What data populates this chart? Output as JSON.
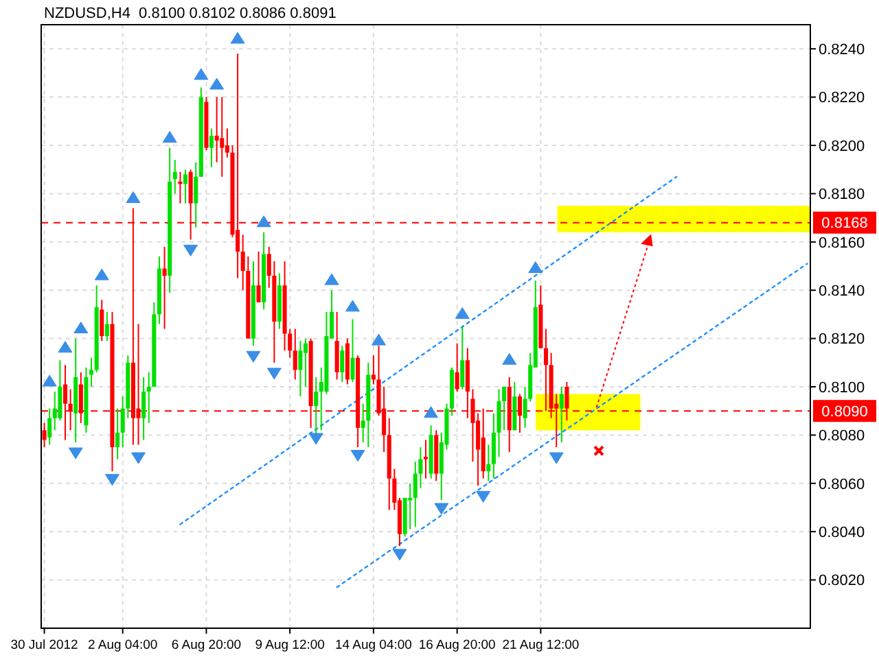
{
  "chart_data": {
    "type": "candlestick",
    "title": "NZDUSD,H4  0.8100 0.8102 0.8086 0.8091",
    "categories": [
      "30 Jul 2012",
      null,
      null,
      null,
      null,
      null,
      null,
      null,
      null,
      null,
      null,
      null,
      null,
      null,
      null,
      "2 Aug 04:00",
      null,
      null,
      null,
      null,
      null,
      null,
      null,
      null,
      null,
      null,
      null,
      null,
      null,
      null,
      null,
      "6 Aug 20:00",
      null,
      null,
      null,
      null,
      null,
      null,
      null,
      null,
      null,
      null,
      null,
      null,
      null,
      null,
      null,
      "9 Aug 12:00",
      null,
      null,
      null,
      null,
      null,
      null,
      null,
      null,
      null,
      null,
      null,
      null,
      null,
      null,
      null,
      "14 Aug 04:00",
      null,
      null,
      null,
      null,
      null,
      null,
      null,
      null,
      null,
      null,
      null,
      null,
      null,
      null,
      null,
      "16 Aug 20:00",
      null,
      null,
      null,
      null,
      null,
      null,
      null,
      null,
      null,
      null,
      null,
      null,
      null,
      null,
      null,
      "21 Aug 12:00",
      null,
      null,
      null,
      null,
      null,
      null,
      null,
      null,
      null,
      null,
      null,
      null,
      null,
      null,
      null,
      null,
      null,
      null,
      null,
      null,
      null,
      null,
      null,
      null,
      null,
      null,
      null,
      null,
      null,
      null,
      null,
      null,
      null,
      null,
      null,
      null,
      null,
      null,
      null,
      null,
      null,
      null,
      null,
      null,
      null,
      null,
      null,
      null,
      null,
      null,
      null
    ],
    "ohlc": [
      [
        0.8082,
        0.8085,
        0.8075,
        0.8078
      ],
      [
        0.8079,
        0.8091,
        0.8076,
        0.8087
      ],
      [
        0.8087,
        0.8098,
        0.8082,
        0.8091
      ],
      [
        0.8087,
        0.8111,
        0.8086,
        0.81
      ],
      [
        0.8101,
        0.8109,
        0.8078,
        0.8093
      ],
      [
        0.8093,
        0.8099,
        0.8082,
        0.809
      ],
      [
        0.8089,
        0.812,
        0.8077,
        0.8104
      ],
      [
        0.8101,
        0.8106,
        0.8085,
        0.8089
      ],
      [
        0.8084,
        0.8108,
        0.8081,
        0.8104
      ],
      [
        0.8105,
        0.8112,
        0.81,
        0.8107
      ],
      [
        0.8107,
        0.8142,
        0.8106,
        0.8133
      ],
      [
        0.8132,
        0.8136,
        0.8119,
        0.8121
      ],
      [
        0.8121,
        0.8131,
        0.8119,
        0.8126
      ],
      [
        0.8126,
        0.8131,
        0.8065,
        0.8075
      ],
      [
        0.8075,
        0.8091,
        0.807,
        0.8081
      ],
      [
        0.8081,
        0.8096,
        0.8075,
        0.8091
      ],
      [
        0.8091,
        0.8113,
        0.8087,
        0.811
      ],
      [
        0.811,
        0.8174,
        0.8076,
        0.8087
      ],
      [
        0.8091,
        0.8126,
        0.8076,
        0.8087
      ],
      [
        0.8087,
        0.8104,
        0.8078,
        0.8098
      ],
      [
        0.8098,
        0.8106,
        0.8085,
        0.81
      ],
      [
        0.81,
        0.8135,
        0.81,
        0.813
      ],
      [
        0.813,
        0.8154,
        0.8126,
        0.8149
      ],
      [
        0.8149,
        0.8158,
        0.8124,
        0.8146
      ],
      [
        0.8146,
        0.8199,
        0.8139,
        0.8185
      ],
      [
        0.8186,
        0.8194,
        0.818,
        0.8189
      ],
      [
        0.8185,
        0.8189,
        0.8176,
        0.8184
      ],
      [
        0.8184,
        0.819,
        0.8176,
        0.8188
      ],
      [
        0.8189,
        0.819,
        0.8161,
        0.8176
      ],
      [
        0.8176,
        0.8193,
        0.8166,
        0.8187
      ],
      [
        0.8187,
        0.8224,
        0.8187,
        0.822
      ],
      [
        0.8218,
        0.822,
        0.8198,
        0.8199
      ],
      [
        0.8199,
        0.8207,
        0.8191,
        0.8204
      ],
      [
        0.8204,
        0.822,
        0.8193,
        0.8202
      ],
      [
        0.8203,
        0.822,
        0.8187,
        0.8199
      ],
      [
        0.82,
        0.8207,
        0.8195,
        0.8197
      ],
      [
        0.8197,
        0.82,
        0.8162,
        0.8163
      ],
      [
        0.8165,
        0.8238,
        0.8145,
        0.8156
      ],
      [
        0.8156,
        0.8163,
        0.814,
        0.8148
      ],
      [
        0.8148,
        0.8154,
        0.812,
        0.812
      ],
      [
        0.812,
        0.8152,
        0.8117,
        0.8142
      ],
      [
        0.8142,
        0.8156,
        0.8135,
        0.8135
      ],
      [
        0.8135,
        0.8164,
        0.8132,
        0.8155
      ],
      [
        0.8155,
        0.8158,
        0.8141,
        0.8146
      ],
      [
        0.8146,
        0.8152,
        0.811,
        0.8127
      ],
      [
        0.8127,
        0.8147,
        0.8124,
        0.8142
      ],
      [
        0.8142,
        0.8152,
        0.8115,
        0.8122
      ],
      [
        0.8122,
        0.8124,
        0.8112,
        0.8115
      ],
      [
        0.8115,
        0.8124,
        0.8103,
        0.8107
      ],
      [
        0.8107,
        0.8119,
        0.8096,
        0.8115
      ],
      [
        0.8114,
        0.812,
        0.81,
        0.8118
      ],
      [
        0.8119,
        0.812,
        0.8083,
        0.8092
      ],
      [
        0.8092,
        0.8104,
        0.808,
        0.8098
      ],
      [
        0.8098,
        0.8108,
        0.8082,
        0.8102
      ],
      [
        0.8098,
        0.8131,
        0.8097,
        0.8121
      ],
      [
        0.812,
        0.814,
        0.812,
        0.8131
      ],
      [
        0.8119,
        0.8131,
        0.8103,
        0.8106
      ],
      [
        0.8106,
        0.8117,
        0.8102,
        0.8115
      ],
      [
        0.8118,
        0.812,
        0.8101,
        0.8103
      ],
      [
        0.8103,
        0.8128,
        0.8102,
        0.8112
      ],
      [
        0.8112,
        0.8113,
        0.8075,
        0.8083
      ],
      [
        0.8083,
        0.8093,
        0.8077,
        0.8086
      ],
      [
        0.8086,
        0.811,
        0.8075,
        0.8105
      ],
      [
        0.8105,
        0.8113,
        0.8101,
        0.8103
      ],
      [
        0.8103,
        0.8117,
        0.8088,
        0.8089
      ],
      [
        0.8091,
        0.81,
        0.8073,
        0.808
      ],
      [
        0.808,
        0.8087,
        0.8049,
        0.8062
      ],
      [
        0.8062,
        0.8066,
        0.8049,
        0.8052
      ],
      [
        0.8053,
        0.8054,
        0.8034,
        0.8039
      ],
      [
        0.8039,
        0.8054,
        0.8038,
        0.8054
      ],
      [
        0.8053,
        0.806,
        0.8041,
        0.8054
      ],
      [
        0.8054,
        0.8069,
        0.8042,
        0.8064
      ],
      [
        0.8064,
        0.8075,
        0.8058,
        0.807
      ],
      [
        0.8071,
        0.8078,
        0.8062,
        0.807
      ],
      [
        0.8064,
        0.8084,
        0.8062,
        0.808
      ],
      [
        0.808,
        0.8082,
        0.8061,
        0.8064
      ],
      [
        0.8064,
        0.8081,
        0.8053,
        0.8077
      ],
      [
        0.8076,
        0.8093,
        0.8074,
        0.8091
      ],
      [
        0.8091,
        0.8108,
        0.8088,
        0.8107
      ],
      [
        0.8106,
        0.8118,
        0.8098,
        0.8099
      ],
      [
        0.81,
        0.8125,
        0.8099,
        0.8111
      ],
      [
        0.8111,
        0.8116,
        0.8087,
        0.8098
      ],
      [
        0.8095,
        0.8099,
        0.8069,
        0.8085
      ],
      [
        0.8086,
        0.8089,
        0.8059,
        0.8074
      ],
      [
        0.8079,
        0.8091,
        0.8062,
        0.8065
      ],
      [
        0.8065,
        0.8076,
        0.8061,
        0.8068
      ],
      [
        0.8068,
        0.8089,
        0.8062,
        0.8081
      ],
      [
        0.8081,
        0.8099,
        0.8071,
        0.8094
      ],
      [
        0.8094,
        0.81,
        0.8082,
        0.81
      ],
      [
        0.81,
        0.8104,
        0.8073,
        0.8082
      ],
      [
        0.8082,
        0.8102,
        0.8082,
        0.8096
      ],
      [
        0.8096,
        0.8097,
        0.8081,
        0.8088
      ],
      [
        0.8087,
        0.81,
        0.8083,
        0.8095
      ],
      [
        0.8095,
        0.8114,
        0.8094,
        0.8109
      ],
      [
        0.8108,
        0.8144,
        0.8108,
        0.8133
      ],
      [
        0.8134,
        0.8142,
        0.8116,
        0.8116
      ],
      [
        0.8116,
        0.8124,
        0.809,
        0.8109
      ],
      [
        0.8109,
        0.8114,
        0.8087,
        0.8091
      ],
      [
        0.8093,
        0.8097,
        0.8075,
        0.8091
      ],
      [
        0.8091,
        0.81,
        0.8077,
        0.8097
      ],
      [
        0.81,
        0.8102,
        0.8086,
        0.8091
      ],
      null,
      null,
      null,
      null,
      null,
      null,
      null,
      null,
      null,
      null,
      null,
      null,
      null,
      null,
      null,
      null,
      null,
      null,
      null,
      null,
      null,
      null,
      null,
      null,
      null,
      null,
      null,
      null,
      null,
      null,
      null,
      null,
      null,
      null,
      null,
      null,
      null,
      null,
      null,
      null,
      null,
      null,
      null,
      null,
      null,
      null
    ],
    "colors": [
      "#ff0000",
      "#00e000",
      "#00e000",
      "#00e000",
      "#ff0000",
      "#ff0000",
      "#00e000",
      "#ff0000",
      "#00e000",
      "#00e000",
      "#00e000",
      "#ff0000",
      "#00e000",
      "#ff0000",
      "#00e000",
      "#00e000",
      "#00e000",
      "#ff0000",
      "#ff0000",
      "#00e000",
      "#00e000",
      "#00e000",
      "#00e000",
      "#ff0000",
      "#00e000",
      "#00e000",
      "#ff0000",
      "#00e000",
      "#ff0000",
      "#00e000",
      "#00e000",
      "#ff0000",
      "#00e000",
      "#ff0000",
      "#ff0000",
      "#ff0000",
      "#ff0000",
      "#ff0000",
      "#ff0000",
      "#ff0000",
      "#00e000",
      "#ff0000",
      "#00e000",
      "#ff0000",
      "#ff0000",
      "#00e000",
      "#ff0000",
      "#ff0000",
      "#ff0000",
      "#00e000",
      "#00e000",
      "#ff0000",
      "#00e000",
      "#00e000",
      "#00e000",
      "#00e000",
      "#ff0000",
      "#00e000",
      "#ff0000",
      "#00e000",
      "#ff0000",
      "#00e000",
      "#00e000",
      "#ff0000",
      "#ff0000",
      "#ff0000",
      "#ff0000",
      "#ff0000",
      "#ff0000",
      "#00e000",
      "#00e000",
      "#00e000",
      "#00e000",
      "#ff0000",
      "#00e000",
      "#ff0000",
      "#00e000",
      "#00e000",
      "#00e000",
      "#ff0000",
      "#00e000",
      "#ff0000",
      "#ff0000",
      "#ff0000",
      "#ff0000",
      "#00e000",
      "#00e000",
      "#00e000",
      "#00e000",
      "#ff0000",
      "#00e000",
      "#ff0000",
      "#00e000",
      "#00e000",
      "#00e000",
      "#ff0000",
      "#ff0000",
      "#ff0000",
      "#ff0000",
      "#00e000",
      "#ff0000",
      null,
      null,
      null,
      null,
      null,
      null,
      null,
      null,
      null,
      null,
      null,
      null,
      null,
      null,
      null,
      null,
      null,
      null,
      null,
      null,
      null,
      null,
      null,
      null,
      null,
      null,
      null,
      null,
      null,
      null,
      null,
      null,
      null,
      null,
      null,
      null,
      null,
      null,
      null,
      null,
      null,
      null,
      null,
      null,
      null,
      null
    ],
    "series": [
      {
        "type": "line",
        "color": "#1e90ff",
        "values": [
          null,
          null,
          null,
          null,
          null,
          null,
          null,
          null,
          null,
          null,
          null,
          null,
          null,
          null,
          null,
          null,
          null,
          null,
          null,
          null,
          null,
          null,
          null,
          null,
          null,
          null,
          0.8043,
          null,
          null,
          null,
          null,
          null,
          null,
          null,
          null,
          null,
          null,
          null,
          null,
          null,
          null,
          null,
          null,
          null,
          null,
          null,
          null,
          null,
          null,
          null,
          null,
          null,
          null,
          null,
          null,
          null,
          null,
          null,
          null,
          null,
          null,
          null,
          null,
          null,
          null,
          null,
          null,
          null,
          null,
          null,
          null,
          null,
          null,
          null,
          null,
          null,
          null,
          null,
          null,
          null,
          null,
          null,
          null,
          null,
          null,
          null,
          null,
          null,
          null,
          null,
          null,
          null,
          null,
          null,
          null,
          null,
          null,
          null,
          null,
          null,
          null,
          null,
          null,
          null,
          null,
          null,
          null,
          null,
          null,
          null,
          null,
          null,
          null,
          null,
          null,
          null,
          null,
          null,
          null,
          null,
          null,
          0.8187,
          null,
          null,
          null,
          null,
          null,
          null,
          null,
          null,
          null,
          null,
          null,
          null,
          null,
          null,
          null,
          null,
          null,
          null,
          null,
          null,
          null,
          null,
          null,
          null,
          null
        ]
      },
      {
        "type": "line",
        "color": "#1e90ff",
        "values": [
          null,
          null,
          null,
          null,
          null,
          null,
          null,
          null,
          null,
          null,
          null,
          null,
          null,
          null,
          null,
          null,
          null,
          null,
          null,
          null,
          null,
          null,
          null,
          null,
          null,
          null,
          null,
          null,
          null,
          null,
          null,
          null,
          null,
          null,
          null,
          null,
          null,
          null,
          null,
          null,
          null,
          null,
          null,
          null,
          null,
          null,
          null,
          null,
          null,
          null,
          null,
          null,
          null,
          null,
          null,
          null,
          0.8017,
          null,
          null,
          null,
          null,
          null,
          null,
          null,
          null,
          null,
          null,
          null,
          null,
          null,
          null,
          null,
          null,
          null,
          null,
          null,
          null,
          null,
          null,
          null,
          null,
          null,
          null,
          null,
          null,
          null,
          null,
          null,
          null,
          null,
          null,
          null,
          null,
          null,
          null,
          null,
          null,
          null,
          null,
          null,
          null,
          null,
          null,
          null,
          null,
          null,
          null,
          null,
          null,
          null,
          null,
          null,
          null,
          null,
          null,
          null,
          null,
          null,
          null,
          null,
          null,
          null,
          null,
          null,
          null,
          null,
          null,
          null,
          null,
          null,
          null,
          null,
          null,
          null,
          null,
          null,
          null,
          null,
          null,
          null,
          null,
          null,
          null,
          null,
          null,
          null,
          0.8151
        ]
      },
      {
        "type": "scatter",
        "color": "#3a8ee6",
        "marker": "triangle",
        "values": [
          null,
          0.8102,
          null,
          null,
          0.8116,
          null,
          null,
          0.8124,
          null,
          null,
          null,
          0.8146,
          null,
          null,
          null,
          null,
          null,
          0.8178,
          null,
          null,
          null,
          null,
          null,
          null,
          0.8203,
          null,
          null,
          null,
          null,
          null,
          0.8229,
          null,
          null,
          0.8225,
          null,
          null,
          null,
          0.8244,
          null,
          null,
          null,
          null,
          0.8168,
          null,
          null,
          null,
          null,
          null,
          null,
          null,
          null,
          null,
          null,
          null,
          null,
          0.8144,
          null,
          null,
          null,
          0.8133,
          null,
          null,
          null,
          null,
          0.8119,
          null,
          null,
          null,
          null,
          null,
          null,
          null,
          null,
          null,
          0.8089,
          null,
          null,
          null,
          null,
          null,
          0.813,
          null,
          null,
          null,
          null,
          null,
          null,
          null,
          null,
          0.8111,
          null,
          null,
          null,
          null,
          0.8149,
          null,
          null,
          null,
          null,
          null,
          null,
          null,
          null,
          null,
          null,
          null,
          null,
          null,
          null,
          null,
          null,
          null,
          null,
          null,
          null,
          null,
          null,
          null,
          null,
          null,
          null,
          null,
          null,
          null,
          null,
          null,
          null,
          null,
          null,
          null,
          null,
          null,
          null,
          null,
          null,
          null,
          null,
          null,
          null,
          null,
          null,
          null,
          null,
          null,
          null,
          null,
          null
        ]
      },
      {
        "type": "scatter",
        "color": "#3a8ee6",
        "marker": "triangle",
        "values": [
          null,
          null,
          null,
          null,
          null,
          null,
          0.8073,
          null,
          null,
          null,
          null,
          null,
          null,
          0.8062,
          null,
          null,
          null,
          null,
          0.8071,
          null,
          null,
          null,
          null,
          null,
          null,
          null,
          null,
          null,
          0.8157,
          null,
          null,
          null,
          null,
          null,
          null,
          null,
          null,
          null,
          null,
          null,
          0.8113,
          null,
          null,
          null,
          0.8106,
          null,
          null,
          null,
          null,
          null,
          null,
          null,
          0.8079,
          null,
          null,
          null,
          null,
          null,
          null,
          null,
          0.8072,
          null,
          null,
          null,
          null,
          null,
          null,
          null,
          0.8031,
          null,
          null,
          null,
          null,
          null,
          null,
          null,
          0.805,
          null,
          null,
          null,
          null,
          null,
          null,
          null,
          0.8055,
          null,
          null,
          null,
          null,
          null,
          null,
          null,
          null,
          null,
          null,
          null,
          null,
          null,
          0.8071,
          null,
          null,
          null,
          null,
          null,
          null,
          null,
          null,
          null,
          null,
          null,
          null,
          null,
          null,
          null,
          null,
          null,
          null,
          null,
          null,
          null,
          null,
          null,
          null,
          null,
          null,
          null,
          null,
          null,
          null,
          null,
          null,
          null,
          null,
          null,
          null,
          null,
          null,
          null,
          null,
          null,
          null,
          null,
          null,
          null,
          null,
          null,
          null
        ]
      }
    ],
    "line_style": "dotted",
    "ylim": [
      0.8,
      0.825
    ],
    "yticks": [
      {
        "value": 0.802,
        "label": "0.8020"
      },
      {
        "value": 0.804,
        "label": "0.8040"
      },
      {
        "value": 0.806,
        "label": "0.8060"
      },
      {
        "value": 0.808,
        "label": "0.8080"
      },
      {
        "value": 0.81,
        "label": "0.8100"
      },
      {
        "value": 0.812,
        "label": "0.8120"
      },
      {
        "value": 0.814,
        "label": "0.8140"
      },
      {
        "value": 0.816,
        "label": "0.8160"
      },
      {
        "value": 0.818,
        "label": "0.8180"
      },
      {
        "value": 0.82,
        "label": "0.8200"
      },
      {
        "value": 0.822,
        "label": "0.8220"
      },
      {
        "value": 0.824,
        "label": "0.8240"
      }
    ],
    "grid": true,
    "bands": [
      {
        "axis": "y",
        "from": 0.8164,
        "to": 0.8175,
        "color": "#ffff00"
      },
      {
        "axis": "y",
        "from": 0.8082,
        "to": 0.8097,
        "color": "#ffff00"
      }
    ],
    "ref_lines": [
      {
        "axis": "y",
        "value": 0.8168,
        "label": "0.8168",
        "color": "#ff0000",
        "line_style": "dashed"
      },
      {
        "axis": "y",
        "value": 0.809,
        "label": "0.8090",
        "color": "#ff0000",
        "line_style": "dashed"
      }
    ]
  }
}
